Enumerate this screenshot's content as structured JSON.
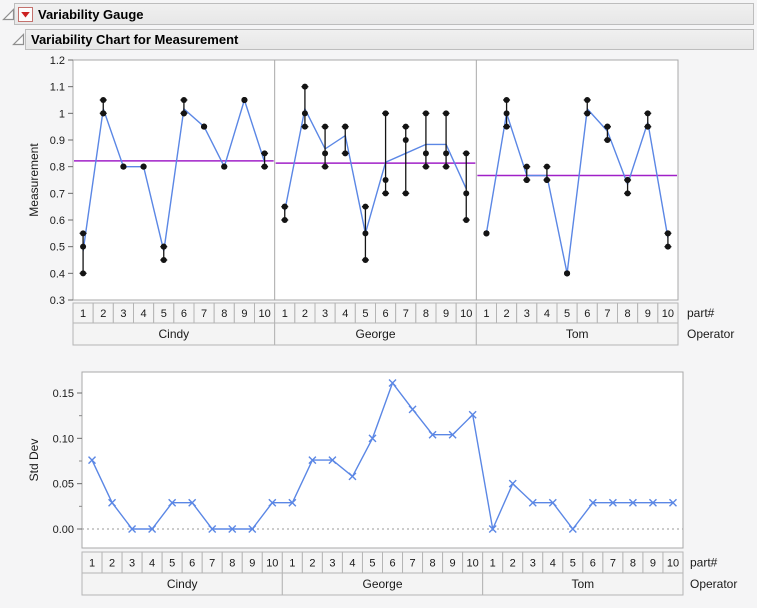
{
  "header": {
    "title": "Variability Gauge",
    "subtitle": "Variability Chart for Measurement"
  },
  "icons": {
    "disclosure_open": "open-disclosure-triangle",
    "red_triangle_menu": "red-triangle-menu"
  },
  "colors": {
    "line_blue": "#5b87e5",
    "mean_purple": "#a020c8",
    "point_black": "#141414",
    "frame_stroke": "#a9a9a9",
    "cell_fill": "#f4f4f4",
    "cell_stroke": "#b5b5b5",
    "zero_line": "#9a9a9a",
    "red_icon": "#cc2222"
  },
  "chart_data": [
    {
      "type": "line",
      "name": "variability-chart",
      "ylabel": "Measurement",
      "ylim": [
        0.3,
        1.2
      ],
      "ytick_values": [
        1.2,
        1.1,
        1.0,
        0.9,
        0.8,
        0.7,
        0.6,
        0.5,
        0.4,
        0.3
      ],
      "ytick_labels": [
        "1.2",
        "1.1",
        "1",
        "0.9",
        "0.8",
        "0.7",
        "0.6",
        "0.5",
        "0.4",
        "0.3"
      ],
      "x_axis_label": "part#",
      "group_axis_label": "Operator",
      "part_labels": [
        "1",
        "2",
        "3",
        "4",
        "5",
        "6",
        "7",
        "8",
        "9",
        "10"
      ],
      "grid": false,
      "legend": "none",
      "operators": [
        {
          "name": "Cindy",
          "measurements": [
            [
              0.55,
              0.5,
              0.4
            ],
            [
              1.05,
              1.0,
              1.0
            ],
            [
              0.8,
              0.8,
              0.8
            ],
            [
              0.8,
              0.8,
              0.8
            ],
            [
              0.5,
              0.5,
              0.45
            ],
            [
              1.05,
              1.0,
              1.0
            ],
            [
              0.95,
              0.95,
              0.95
            ],
            [
              0.8,
              0.8,
              0.8
            ],
            [
              1.05,
              1.05,
              1.05
            ],
            [
              0.85,
              0.8,
              0.8
            ]
          ]
        },
        {
          "name": "George",
          "measurements": [
            [
              0.65,
              0.65,
              0.6
            ],
            [
              1.1,
              1.0,
              0.95
            ],
            [
              0.95,
              0.85,
              0.8
            ],
            [
              0.95,
              0.95,
              0.85
            ],
            [
              0.65,
              0.55,
              0.45
            ],
            [
              1.0,
              0.75,
              0.7
            ],
            [
              0.95,
              0.9,
              0.7
            ],
            [
              1.0,
              0.85,
              0.8
            ],
            [
              1.0,
              0.85,
              0.8
            ],
            [
              0.85,
              0.7,
              0.6
            ]
          ]
        },
        {
          "name": "Tom",
          "measurements": [
            [
              0.55,
              0.55,
              0.55
            ],
            [
              1.05,
              1.0,
              0.95
            ],
            [
              0.8,
              0.75,
              0.75
            ],
            [
              0.8,
              0.75,
              0.75
            ],
            [
              0.4,
              0.4,
              0.4
            ],
            [
              1.05,
              1.0,
              1.0
            ],
            [
              0.95,
              0.95,
              0.9
            ],
            [
              0.75,
              0.75,
              0.7
            ],
            [
              1.0,
              0.95,
              0.95
            ],
            [
              0.55,
              0.55,
              0.5
            ]
          ]
        }
      ]
    },
    {
      "type": "line",
      "name": "std-dev-chart",
      "ylabel": "Std Dev",
      "ylim": [
        -0.021,
        0.173
      ],
      "ytick_values": [
        0.15,
        0.1,
        0.05,
        0.0
      ],
      "ytick_labels": [
        "0.15",
        "0.10",
        "0.05",
        "0.00"
      ],
      "minor_tick_values": [
        0.125,
        0.075,
        0.025
      ],
      "zero_reference_line": true,
      "x_axis_label": "part#",
      "group_axis_label": "Operator",
      "part_labels": [
        "1",
        "2",
        "3",
        "4",
        "5",
        "6",
        "7",
        "8",
        "9",
        "10"
      ],
      "grid": false,
      "legend": "none",
      "operators": [
        {
          "name": "Cindy",
          "std_devs": [
            0.076,
            0.029,
            0.0,
            0.0,
            0.029,
            0.029,
            0.0,
            0.0,
            0.0,
            0.029
          ]
        },
        {
          "name": "George",
          "std_devs": [
            0.029,
            0.076,
            0.076,
            0.058,
            0.1,
            0.161,
            0.132,
            0.104,
            0.104,
            0.126
          ]
        },
        {
          "name": "Tom",
          "std_devs": [
            0.0,
            0.05,
            0.029,
            0.029,
            0.0,
            0.029,
            0.029,
            0.029,
            0.029,
            0.029
          ]
        }
      ]
    }
  ]
}
